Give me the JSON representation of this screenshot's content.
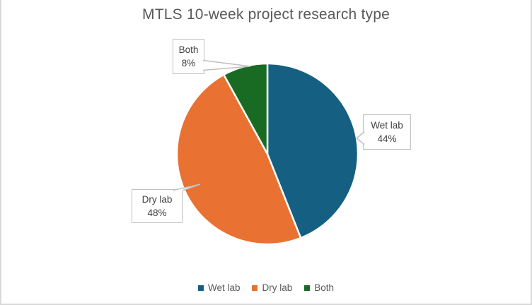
{
  "title": "MTLS 10-week project research type",
  "chart_data": {
    "type": "pie",
    "title": "MTLS 10-week project research type",
    "categories": [
      "Wet lab",
      "Dry lab",
      "Both"
    ],
    "values": [
      44,
      48,
      8
    ],
    "value_unit": "percent",
    "colors": [
      "#156082",
      "#E97132",
      "#196B24"
    ],
    "start_angle": "12 o'clock",
    "direction": "clockwise",
    "data_labels": [
      "Wet lab 44%",
      "Dry lab 48%",
      "Both 8%"
    ],
    "legend_position": "bottom"
  },
  "callouts": {
    "both": {
      "name": "Both",
      "value": "8%"
    },
    "wet_lab": {
      "name": "Wet lab",
      "value": "44%"
    },
    "dry_lab": {
      "name": "Dry lab",
      "value": "48%"
    }
  },
  "legend": {
    "items": [
      {
        "label": "Wet lab",
        "color": "#156082"
      },
      {
        "label": "Dry lab",
        "color": "#E97132"
      },
      {
        "label": "Both",
        "color": "#196B24"
      }
    ]
  },
  "style_colors": {
    "title_text": "#595959",
    "callout_text": "#404040",
    "callout_border": "#BFBFBF",
    "legend_text": "#595959",
    "frame_border": "#D9D9D9",
    "slice_separator": "#FFFFFF"
  }
}
